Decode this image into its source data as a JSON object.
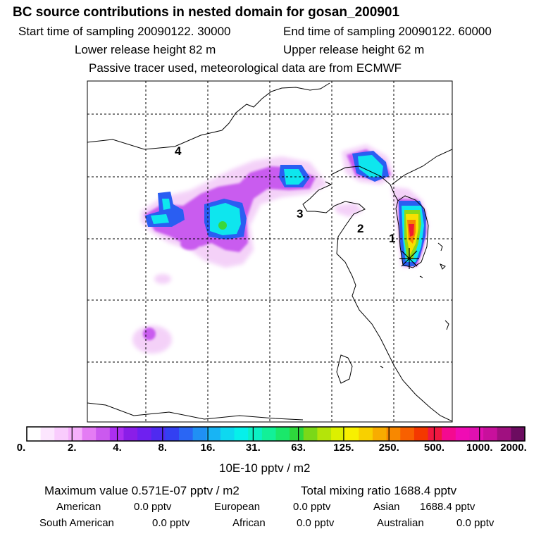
{
  "title": "BC  source contributions in nested domain for gosan_200901",
  "sampling": {
    "start": "Start time of sampling 20090122. 30000",
    "end": "End time of sampling 20090122. 60000"
  },
  "release": {
    "lower": "Lower release height   82 m",
    "upper": "Upper release height   62 m"
  },
  "tracer_note": "Passive tracer used, meteorological data are from ECMWF",
  "map": {
    "region_labels": [
      "4",
      "3",
      "2",
      "1"
    ],
    "receptor": "gosan"
  },
  "colorbar": {
    "tick_labels": [
      "0.",
      "2.",
      "4.",
      "8.",
      "16.",
      "31.",
      "63.",
      "125.",
      "250.",
      "500.",
      "1000.",
      "2000."
    ],
    "units": "10E-10 pptv / m2",
    "colors": [
      "#ffffff",
      "#fce6fe",
      "#f9ccfd",
      "#f5b0fb",
      "#e47cf4",
      "#cb59ef",
      "#ac2ff0",
      "#8a1ee8",
      "#6f20f0",
      "#4f2af0",
      "#3340f2",
      "#2a66f4",
      "#2090f4",
      "#18b4f4",
      "#0ed8f0",
      "#06f0ea",
      "#0cf0c4",
      "#12f098",
      "#1ae86a",
      "#2ed83c",
      "#7ad818",
      "#b4e40a",
      "#dcf000",
      "#f8f000",
      "#f8d000",
      "#f8ac00",
      "#f88800",
      "#f86000",
      "#f43800",
      "#f01840",
      "#f40a90",
      "#f00cb4",
      "#e010b0",
      "#c8109c",
      "#a01080",
      "#6c0c60"
    ]
  },
  "summary": {
    "maximum": "Maximum value  0.571E-07 pptv / m2",
    "total": "Total mixing ratio     1688.4 pptv"
  },
  "contributions": [
    {
      "region": "American",
      "value": "0.0 pptv"
    },
    {
      "region": "European",
      "value": "0.0 pptv"
    },
    {
      "region": "Asian",
      "value": "1688.4 pptv"
    },
    {
      "region": "South American",
      "value": "0.0 pptv"
    },
    {
      "region": "African",
      "value": "0.0 pptv"
    },
    {
      "region": "Australian",
      "value": "0.0 pptv"
    }
  ]
}
